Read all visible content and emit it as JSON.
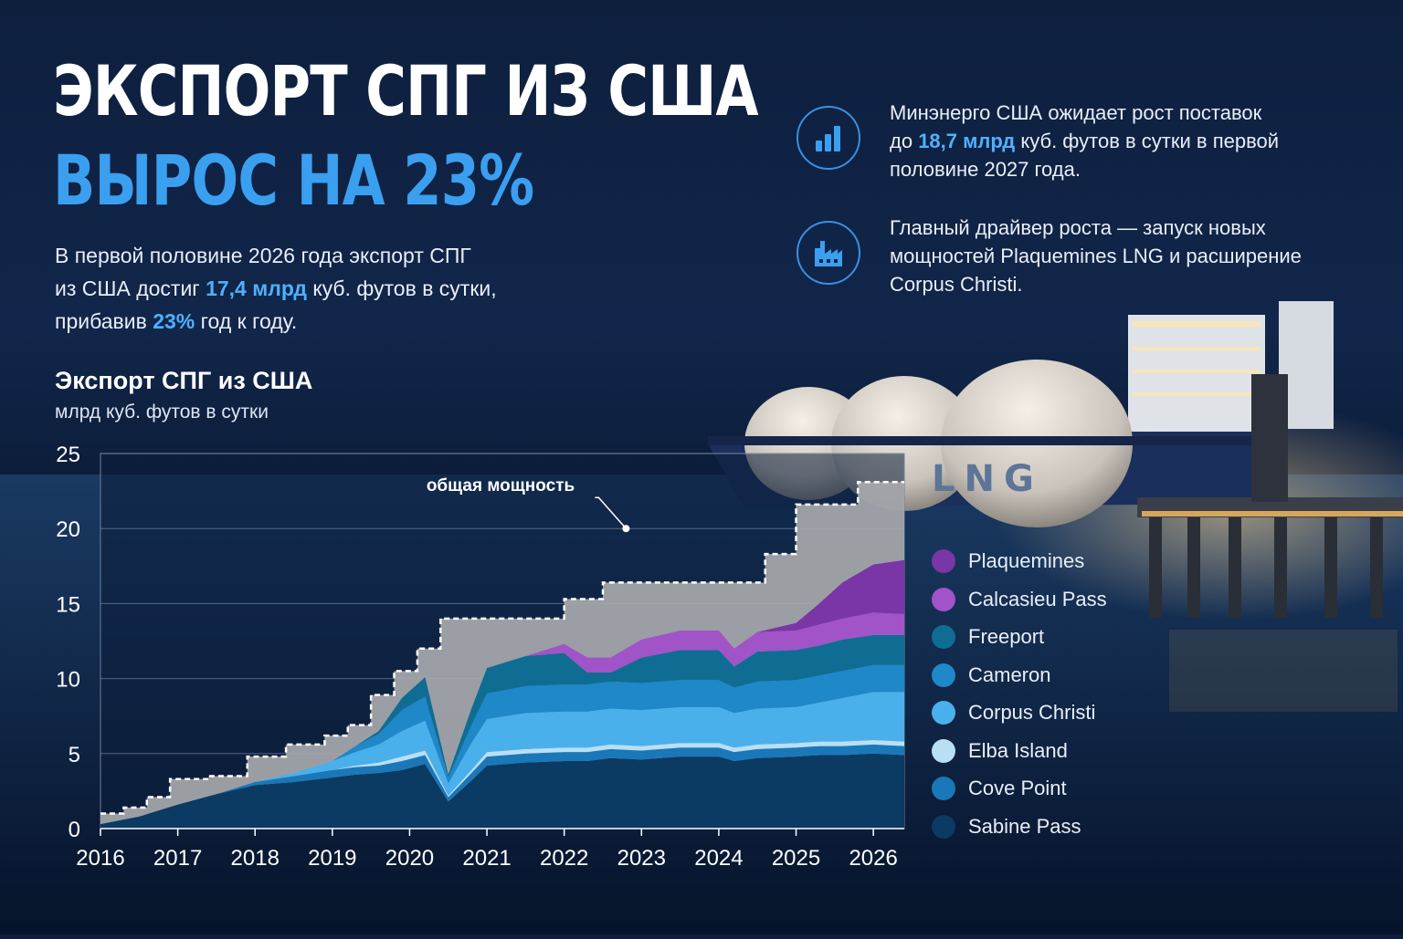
{
  "header": {
    "title_line1": "ЭКСПОРТ СПГ ИЗ США",
    "title_line2": "ВЫРОС НА 23%"
  },
  "lead": {
    "line1": "В первой половине 2026 года экспорт СПГ",
    "line2_pre": "из США достиг ",
    "line2_hl": "17,4 млрд",
    "line2_post": " куб. футов в сутки,",
    "line3_pre": "прибавив ",
    "line3_hl": "23%",
    "line3_post": " год к году."
  },
  "info": [
    {
      "icon": "bar-chart-icon",
      "line1": "Минэнерго США ожидает рост поставок",
      "line2_pre": "до ",
      "line2_hl": "18,7 млрд",
      "line2_post": " куб. футов в сутки в первой",
      "line3": "половине 2027 года."
    },
    {
      "icon": "factory-icon",
      "line1": "Главный драйвер роста — запуск новых",
      "line2": "мощностей Plaquemines LNG и расширение",
      "line3": "Corpus Christi."
    }
  ],
  "photo": {
    "ship_hull_text": "LNG"
  },
  "colors": {
    "background": "#0e1f3e",
    "accent": "#3b9ff0",
    "capacity": "#a7a9ad",
    "Plaquemines": "#7a35a6",
    "Calcasieu Pass": "#a054c8",
    "Freeport": "#0f6d93",
    "Cameron": "#1e88c8",
    "Corpus Christi": "#4ab0ec",
    "Elba Island": "#b9dff4",
    "Cove Point": "#1a78b8",
    "Sabine Pass": "#0b3a63"
  },
  "chart_data": {
    "type": "area",
    "title": "Экспорт СПГ из США",
    "subtitle": "млрд куб. футов в сутки",
    "xlabel": "",
    "ylabel": "",
    "xlim": [
      2016,
      2026.4
    ],
    "ylim": [
      0,
      25
    ],
    "x_ticks": [
      "2016",
      "2017",
      "2018",
      "2019",
      "2020",
      "2021",
      "2022",
      "2023",
      "2024",
      "2025",
      "2026"
    ],
    "y_ticks": [
      "0",
      "5",
      "10",
      "15",
      "20",
      "25"
    ],
    "grid": true,
    "legend_position": "right",
    "annotation": "общая мощность",
    "x": [
      2016.0,
      2016.5,
      2017.0,
      2017.5,
      2018.0,
      2018.5,
      2019.0,
      2019.3,
      2019.6,
      2019.9,
      2020.2,
      2020.5,
      2020.8,
      2021.0,
      2021.5,
      2022.0,
      2022.3,
      2022.6,
      2023.0,
      2023.5,
      2024.0,
      2024.2,
      2024.5,
      2025.0,
      2025.3,
      2025.6,
      2026.0,
      2026.4
    ],
    "series": [
      {
        "name": "Sabine Pass",
        "values": [
          0.3,
          0.8,
          1.6,
          2.3,
          2.9,
          3.1,
          3.4,
          3.6,
          3.7,
          3.9,
          4.3,
          1.8,
          3.2,
          4.2,
          4.4,
          4.5,
          4.5,
          4.7,
          4.6,
          4.8,
          4.8,
          4.5,
          4.7,
          4.8,
          4.9,
          4.9,
          5.0,
          4.9
        ]
      },
      {
        "name": "Cove Point",
        "values": [
          0,
          0,
          0,
          0,
          0.2,
          0.4,
          0.5,
          0.5,
          0.5,
          0.6,
          0.6,
          0.3,
          0.5,
          0.6,
          0.6,
          0.6,
          0.6,
          0.6,
          0.6,
          0.6,
          0.6,
          0.6,
          0.6,
          0.6,
          0.6,
          0.6,
          0.6,
          0.6
        ]
      },
      {
        "name": "Elba Island",
        "values": [
          0,
          0,
          0,
          0,
          0,
          0,
          0,
          0.1,
          0.2,
          0.3,
          0.3,
          0.1,
          0.2,
          0.3,
          0.3,
          0.3,
          0.3,
          0.3,
          0.3,
          0.3,
          0.3,
          0.3,
          0.3,
          0.3,
          0.3,
          0.3,
          0.3,
          0.3
        ]
      },
      {
        "name": "Corpus Christi",
        "values": [
          0,
          0,
          0,
          0,
          0,
          0.2,
          0.6,
          0.9,
          1.2,
          1.7,
          2.0,
          0.8,
          1.8,
          2.2,
          2.4,
          2.4,
          2.4,
          2.4,
          2.4,
          2.4,
          2.4,
          2.3,
          2.4,
          2.4,
          2.6,
          2.9,
          3.2,
          3.3
        ]
      },
      {
        "name": "Cameron",
        "values": [
          0,
          0,
          0,
          0,
          0,
          0,
          0,
          0.4,
          0.7,
          1.4,
          1.6,
          0.4,
          1.2,
          1.7,
          1.8,
          1.8,
          1.8,
          1.8,
          1.8,
          1.8,
          1.8,
          1.7,
          1.8,
          1.8,
          1.8,
          1.8,
          1.8,
          1.8
        ]
      },
      {
        "name": "Freeport",
        "values": [
          0,
          0,
          0,
          0,
          0,
          0,
          0,
          0,
          0.2,
          0.8,
          1.3,
          0.2,
          1.1,
          1.7,
          2.0,
          2.1,
          0.8,
          0.6,
          1.7,
          2.0,
          2.0,
          1.4,
          2.0,
          2.0,
          2.0,
          2.1,
          2.0,
          2.0
        ]
      },
      {
        "name": "Calcasieu Pass",
        "values": [
          0,
          0,
          0,
          0,
          0,
          0,
          0,
          0,
          0,
          0,
          0,
          0,
          0,
          0,
          0,
          0.6,
          1.0,
          1.0,
          1.2,
          1.3,
          1.3,
          1.2,
          1.3,
          1.3,
          1.4,
          1.4,
          1.5,
          1.4
        ]
      },
      {
        "name": "Plaquemines",
        "values": [
          0,
          0,
          0,
          0,
          0,
          0,
          0,
          0,
          0,
          0,
          0,
          0,
          0,
          0,
          0,
          0,
          0,
          0,
          0,
          0,
          0,
          0,
          0,
          0.5,
          1.4,
          2.4,
          3.2,
          3.6
        ]
      }
    ],
    "capacity": {
      "name": "общая мощность",
      "x": [
        2016.0,
        2016.3,
        2016.6,
        2016.9,
        2017.4,
        2017.9,
        2018.4,
        2018.9,
        2019.2,
        2019.5,
        2019.8,
        2020.1,
        2020.4,
        2021.5,
        2022.0,
        2022.5,
        2024.4,
        2024.6,
        2025.0,
        2025.5,
        2025.8,
        2026.4
      ],
      "values": [
        1.0,
        1.4,
        2.1,
        3.3,
        3.5,
        4.8,
        5.6,
        6.2,
        6.9,
        8.9,
        10.5,
        12.0,
        14.0,
        14.0,
        15.3,
        16.4,
        16.4,
        18.3,
        21.6,
        21.6,
        23.1,
        23.1
      ]
    }
  }
}
